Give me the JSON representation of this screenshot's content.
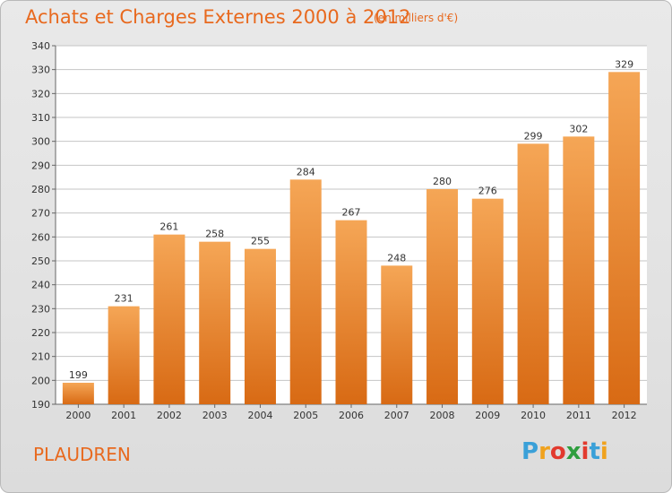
{
  "chart_data": {
    "type": "bar",
    "title": "Achats et Charges Externes 2000 à 2012",
    "subtitle": "(en milliers d'€)",
    "categories": [
      "2000",
      "2001",
      "2002",
      "2003",
      "2004",
      "2005",
      "2006",
      "2007",
      "2008",
      "2009",
      "2010",
      "2011",
      "2012"
    ],
    "values": [
      199,
      231,
      261,
      258,
      255,
      284,
      267,
      248,
      280,
      276,
      299,
      302,
      329
    ],
    "ylim": [
      190,
      340
    ],
    "yticks": [
      190,
      200,
      210,
      220,
      230,
      240,
      250,
      260,
      270,
      280,
      290,
      300,
      310,
      320,
      330,
      340
    ],
    "xlabel": "",
    "ylabel": "",
    "grid": true,
    "legend": "none",
    "colors": {
      "bar_top": "#f5a656",
      "bar_bottom": "#d86a14",
      "grid": "#c4c4c4",
      "plot_bg": "#ffffff"
    }
  },
  "commune": "PLAUDREN",
  "logo": {
    "letters": [
      "P",
      "r",
      "o",
      "x",
      "i",
      "t",
      "i"
    ],
    "colors": [
      "#3aa0d8",
      "#f0a21e",
      "#e23a2e",
      "#2e9e3e",
      "#e23a2e",
      "#3aa0d8",
      "#f0a21e"
    ]
  }
}
